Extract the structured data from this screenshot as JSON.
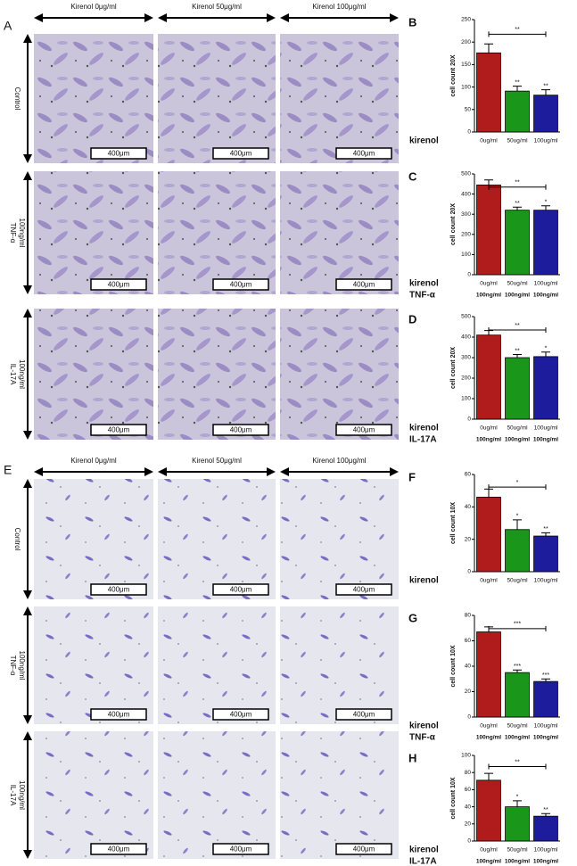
{
  "image_panels": [
    {
      "letter": "A",
      "columns": [
        "Kirenol 0μg/ml",
        "Kirenol 50μg/ml",
        "Kirenol 100μg/ml"
      ],
      "rows": [
        [
          "Control"
        ],
        [
          "TNF-α",
          "100ng/ml"
        ],
        [
          "IL-17A",
          "100ng/ml"
        ]
      ],
      "scale": "400μm"
    },
    {
      "letter": "E",
      "columns": [
        "Kirenol 0μg/ml",
        "Kirenol 50μg/ml",
        "Kirenol 100μg/ml"
      ],
      "rows": [
        [
          "Control"
        ],
        [
          "TNF-α",
          "100ng/ml"
        ],
        [
          "IL-17A",
          "100ng/ml"
        ]
      ],
      "scale": "400μm"
    }
  ],
  "chart_data": [
    {
      "type": "bar",
      "panel": "B",
      "ylabel": "cell count 20X",
      "group_label": "kirenol",
      "categories": [
        "0ug/ml",
        "50ug/ml",
        "100ug/ml"
      ],
      "values": [
        176,
        91,
        82
      ],
      "errors": [
        20,
        11,
        12
      ],
      "colors": [
        "#b01c1c",
        "#1a961a",
        "#1c1c9c"
      ],
      "significance": [
        "**",
        "**"
      ],
      "bracket_label": "**",
      "ylim": [
        0,
        250
      ],
      "yticks": [
        0,
        50,
        100,
        150,
        200,
        250
      ]
    },
    {
      "type": "bar",
      "panel": "C",
      "ylabel": "cell count 20X",
      "group_label": "kirenol",
      "categories": [
        "0ug/ml",
        "50ug/ml",
        "100ug/ml"
      ],
      "values": [
        445,
        320,
        320
      ],
      "errors": [
        25,
        15,
        22
      ],
      "colors": [
        "#b01c1c",
        "#1a961a",
        "#1c1c9c"
      ],
      "significance": [
        "**",
        "*"
      ],
      "bracket_label": "**",
      "extra_rows": [
        {
          "label": "TNF-α",
          "values": [
            "100ng/ml",
            "100ng/ml",
            "100ng/ml"
          ]
        }
      ],
      "ylim": [
        0,
        500
      ],
      "yticks": [
        0,
        100,
        200,
        300,
        400,
        500
      ]
    },
    {
      "type": "bar",
      "panel": "D",
      "ylabel": "cell count 20X",
      "group_label": "kirenol",
      "categories": [
        "0ug/ml",
        "50ug/ml",
        "100ug/ml"
      ],
      "values": [
        410,
        300,
        305
      ],
      "errors": [
        22,
        15,
        22
      ],
      "colors": [
        "#b01c1c",
        "#1a961a",
        "#1c1c9c"
      ],
      "significance": [
        "**",
        "*"
      ],
      "bracket_label": "**",
      "extra_rows": [
        {
          "label": "IL-17A",
          "values": [
            "100ng/ml",
            "100ng/ml",
            "100ng/ml"
          ]
        }
      ],
      "ylim": [
        0,
        500
      ],
      "yticks": [
        0,
        100,
        200,
        300,
        400,
        500
      ]
    },
    {
      "type": "bar",
      "panel": "F",
      "ylabel": "cell count 10X",
      "group_label": "kirenol",
      "categories": [
        "0ug/ml",
        "50ug/ml",
        "100ug/ml"
      ],
      "values": [
        46,
        26,
        22
      ],
      "errors": [
        5,
        6,
        2
      ],
      "colors": [
        "#b01c1c",
        "#1a961a",
        "#1c1c9c"
      ],
      "significance": [
        "*",
        "**"
      ],
      "bracket_label": "*",
      "ylim": [
        0,
        60
      ],
      "yticks": [
        0,
        20,
        40,
        60
      ]
    },
    {
      "type": "bar",
      "panel": "G",
      "ylabel": "cell count 10X",
      "group_label": "kirenol",
      "categories": [
        "0ug/ml",
        "50ug/ml",
        "100ug/ml"
      ],
      "values": [
        67,
        35,
        28
      ],
      "errors": [
        4,
        2,
        2
      ],
      "colors": [
        "#b01c1c",
        "#1a961a",
        "#1c1c9c"
      ],
      "significance": [
        "***",
        "***"
      ],
      "bracket_label": "***",
      "extra_rows": [
        {
          "label": "TNF-α",
          "values": [
            "100ng/ml",
            "100ng/ml",
            "100ng/ml"
          ]
        }
      ],
      "ylim": [
        0,
        80
      ],
      "yticks": [
        0,
        20,
        40,
        60,
        80
      ]
    },
    {
      "type": "bar",
      "panel": "H",
      "ylabel": "cell count 10X",
      "group_label": "kirenol",
      "categories": [
        "0ug/ml",
        "50ug/ml",
        "100ug/ml"
      ],
      "values": [
        71,
        40,
        29
      ],
      "errors": [
        8,
        7,
        3
      ],
      "colors": [
        "#b01c1c",
        "#1a961a",
        "#1c1c9c"
      ],
      "significance": [
        "*",
        "**"
      ],
      "bracket_label": "**",
      "extra_rows": [
        {
          "label": "IL-17A",
          "values": [
            "100ng/ml",
            "100ng/ml",
            "100ng/ml"
          ]
        }
      ],
      "ylim": [
        0,
        100
      ],
      "yticks": [
        0,
        20,
        40,
        60,
        80,
        100
      ]
    }
  ]
}
